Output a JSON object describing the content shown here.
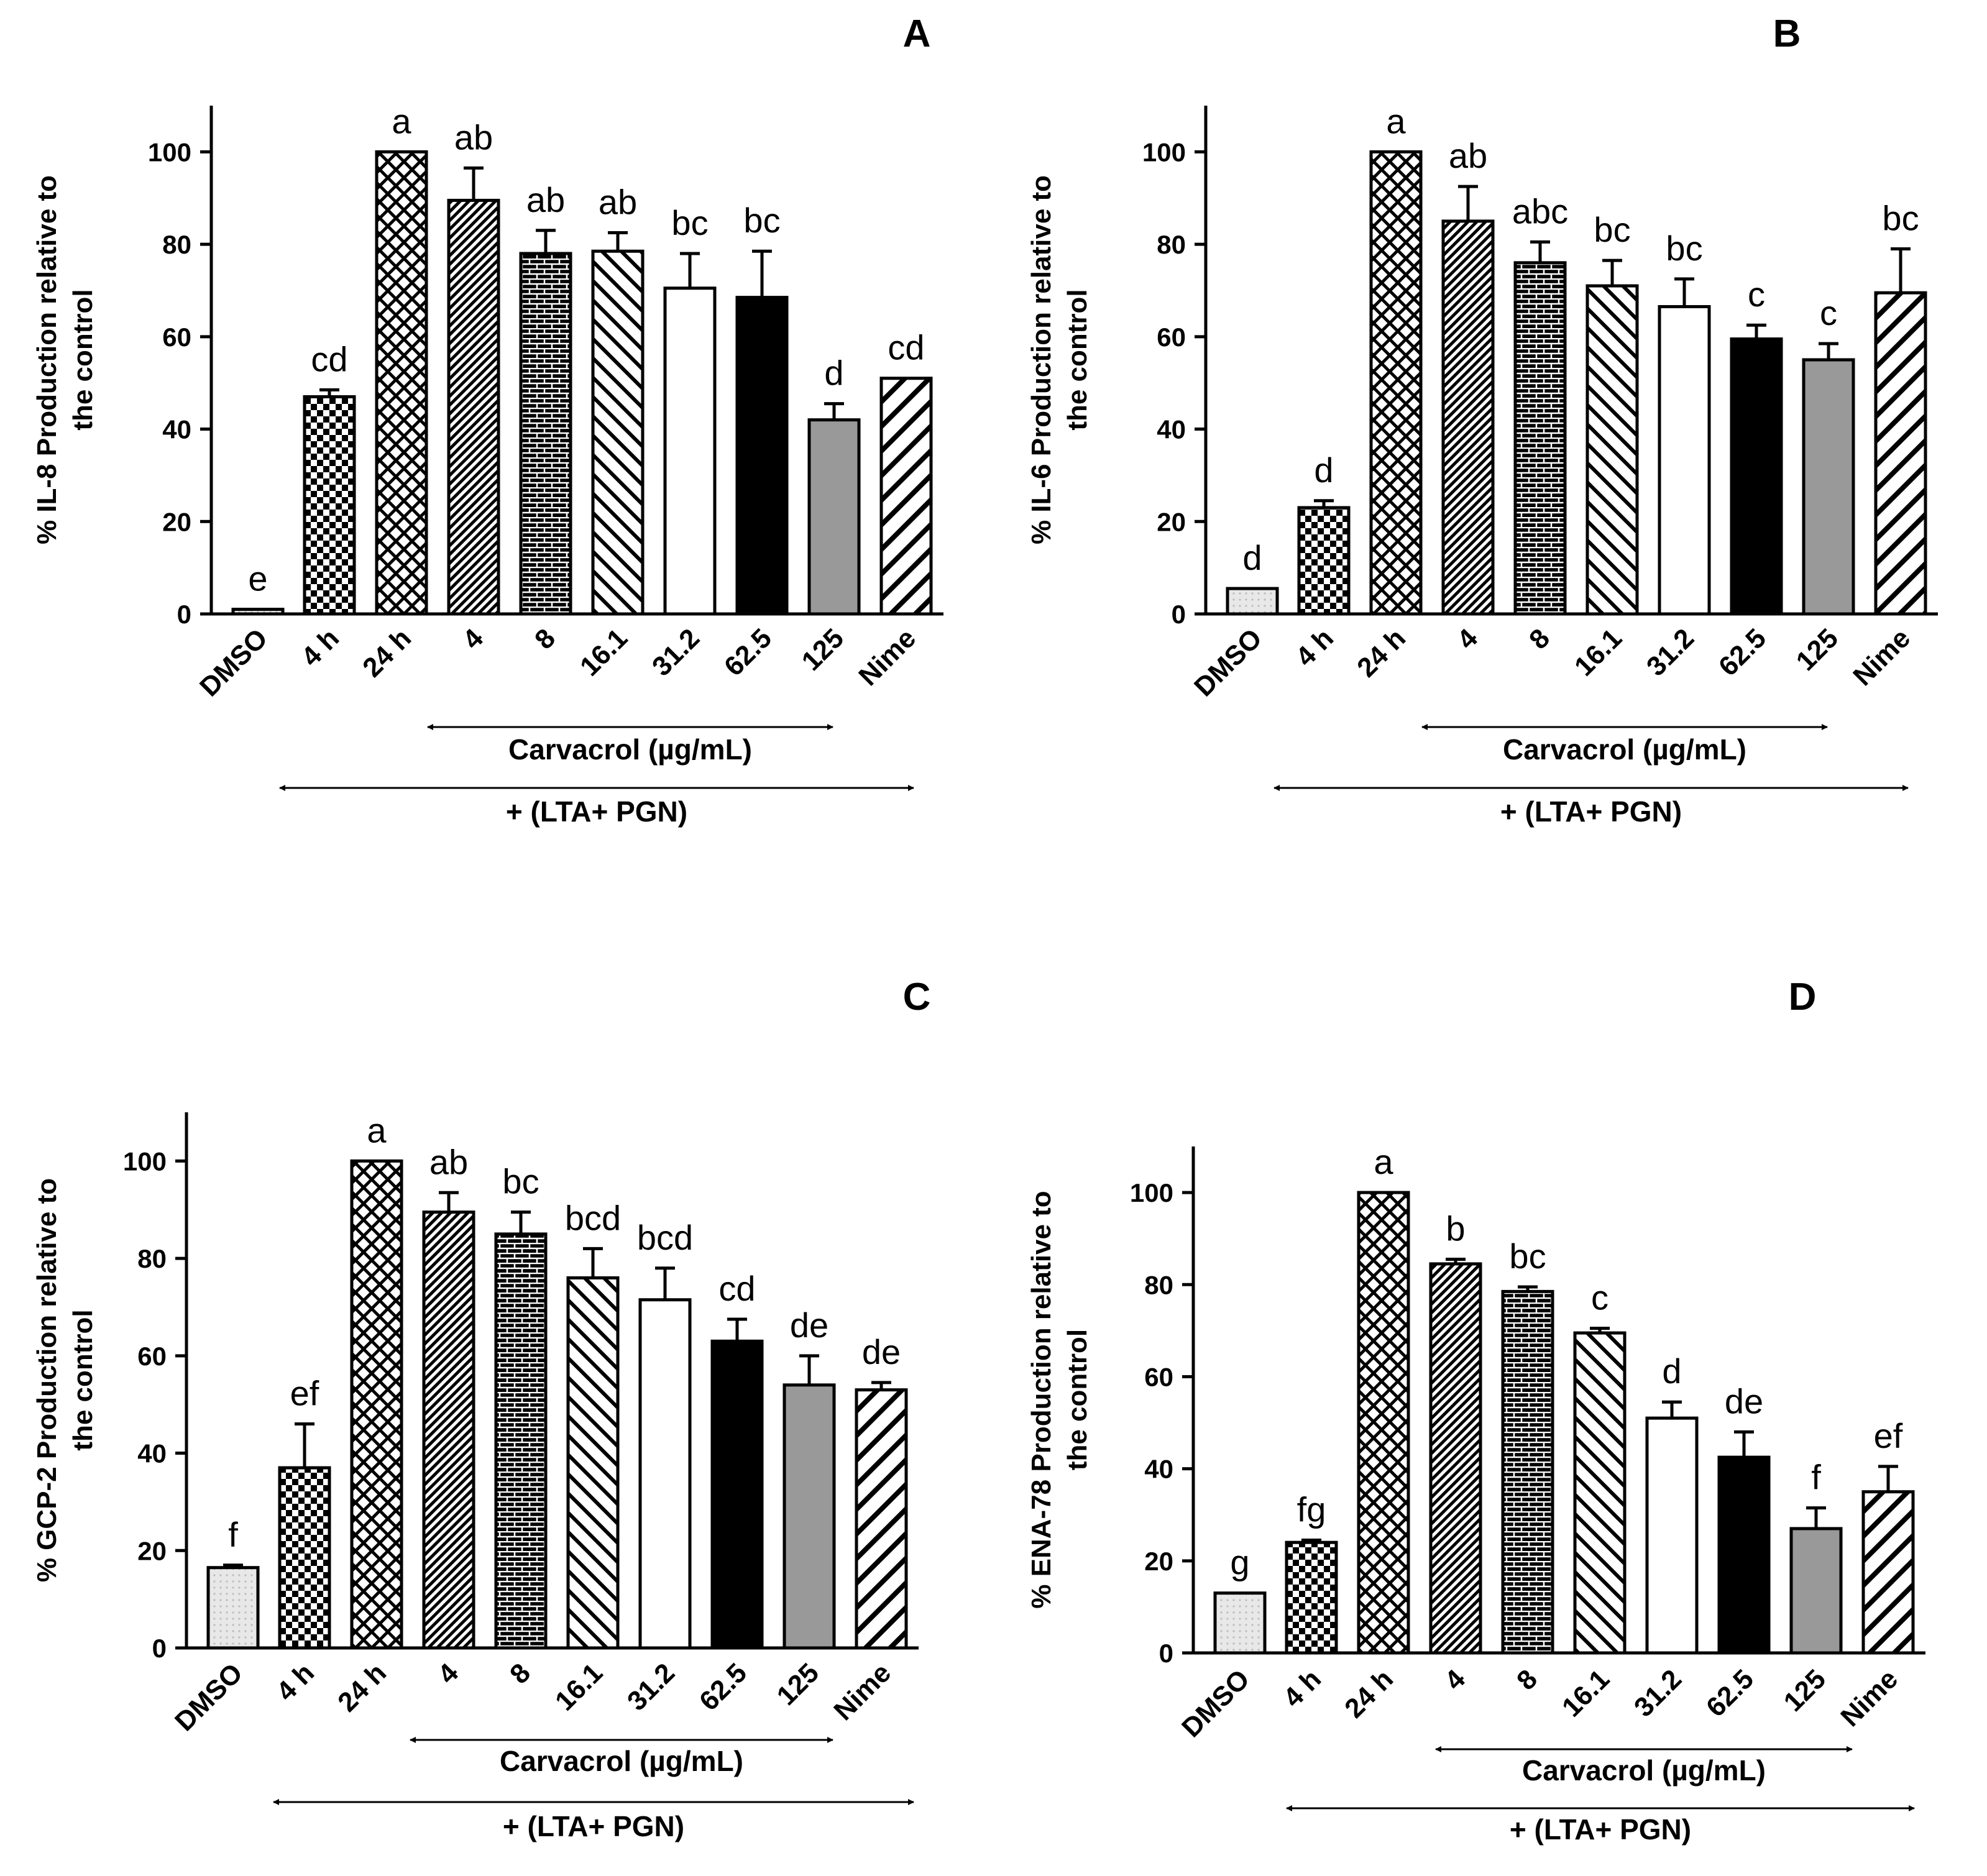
{
  "figure": {
    "categories": [
      "DMSO",
      "4 h",
      "24 h",
      "4",
      "8",
      "16.1",
      "31.2",
      "62.5",
      "125",
      "Nime"
    ],
    "patterns": [
      "dots",
      "checker",
      "crosshatch",
      "diag-fine",
      "brick",
      "diag-back",
      "white",
      "black",
      "gray",
      "diag-wide"
    ],
    "group_carvacrol": "Carvacrol (µg/mL)",
    "group_lta": "+ (LTA+ PGN)",
    "colors": {
      "bar_stroke": "#000000",
      "gray": "#999999",
      "dots_bg": "#e8e8e8",
      "black": "#000000",
      "white": "#ffffff"
    }
  },
  "chart_data": [
    {
      "type": "bar",
      "panel": "A",
      "ylabel_line1": "% IL-8 Production relative to",
      "ylabel_line2": "the control",
      "ylim": [
        0,
        110
      ],
      "yticks": [
        "0",
        "20",
        "40",
        "60",
        "80",
        "100"
      ],
      "values": [
        1,
        47,
        100,
        89.5,
        78,
        78.5,
        70.5,
        68.5,
        42,
        51
      ],
      "errors": [
        0,
        1.5,
        0,
        7,
        5,
        4,
        7.5,
        10,
        3.5,
        0
      ],
      "sig": [
        "e",
        "cd",
        "a",
        "ab",
        "ab",
        "ab",
        "bc",
        "bc",
        "d",
        "cd"
      ]
    },
    {
      "type": "bar",
      "panel": "B",
      "ylabel_line1": "% IL-6 Production relative to",
      "ylabel_line2": "the control",
      "ylim": [
        0,
        110
      ],
      "yticks": [
        "0",
        "20",
        "40",
        "60",
        "80",
        "100"
      ],
      "values": [
        5.5,
        23,
        100,
        85,
        76,
        71,
        66.5,
        59.5,
        55,
        69.5
      ],
      "errors": [
        0,
        1.5,
        0,
        7.5,
        4.5,
        5.5,
        6,
        3,
        3.5,
        9.5
      ],
      "sig": [
        "d",
        "d",
        "a",
        "ab",
        "abc",
        "bc",
        "bc",
        "c",
        "c",
        "bc"
      ]
    },
    {
      "type": "bar",
      "panel": "C",
      "ylabel_line1": "% GCP-2 Production relative to",
      "ylabel_line2": "the control",
      "ylim": [
        0,
        110
      ],
      "yticks": [
        "0",
        "20",
        "40",
        "60",
        "80",
        "100"
      ],
      "values": [
        16.5,
        37,
        100,
        89.5,
        85,
        76,
        71.5,
        63,
        54,
        53
      ],
      "errors": [
        0.5,
        9,
        0,
        4,
        4.5,
        6,
        6.5,
        4.5,
        6,
        1.5
      ],
      "sig": [
        "f",
        "ef",
        "a",
        "ab",
        "bc",
        "bcd",
        "bcd",
        "cd",
        "de",
        "de"
      ]
    },
    {
      "type": "bar",
      "panel": "D",
      "ylabel_line1": "% ENA-78 Production relative to",
      "ylabel_line2": "the control",
      "ylim": [
        0,
        110
      ],
      "yticks": [
        "0",
        "20",
        "40",
        "60",
        "80",
        "100"
      ],
      "values": [
        13,
        24,
        100,
        84.5,
        78.5,
        69.5,
        51,
        42.5,
        27,
        35
      ],
      "errors": [
        0,
        0.5,
        0,
        1,
        1,
        1,
        3.5,
        5.5,
        4.5,
        5.5
      ],
      "sig": [
        "g",
        "fg",
        "a",
        "b",
        "bc",
        "c",
        "d",
        "de",
        "f",
        "ef"
      ]
    }
  ]
}
